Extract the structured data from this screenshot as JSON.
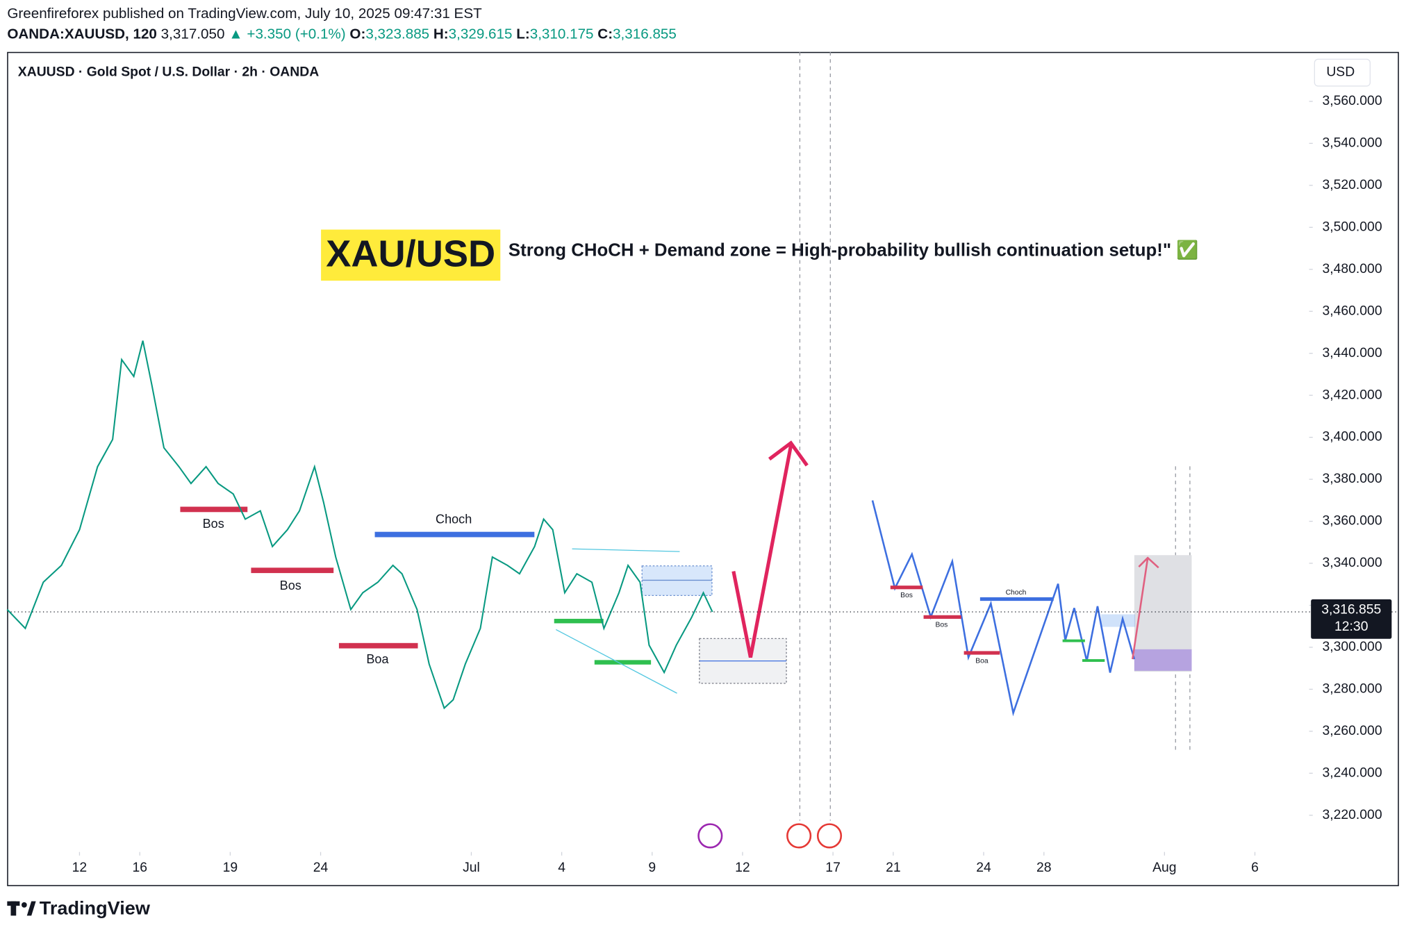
{
  "header": {
    "publisher_line": "Greenfireforex published on TradingView.com, July 10, 2025 09:47:31 EST",
    "symbol": "OANDA:XAUUSD, 120",
    "last": "3,317.050",
    "change": "▲ +3.350 (+0.1%)",
    "ohlc": [
      {
        "label": "O:",
        "value": "3,323.885"
      },
      {
        "label": "H:",
        "value": "3,329.615"
      },
      {
        "label": "L:",
        "value": "3,310.175"
      },
      {
        "label": "C:",
        "value": "3,316.855"
      }
    ]
  },
  "chart_data": {
    "type": "line",
    "title": "XAUUSD · Gold Spot / U.S. Dollar · 2h · OANDA",
    "currency": "USD",
    "color": "#089981",
    "banner_title": "XAU/USD",
    "banner_text": "Strong CHoCH + Demand zone = High-probability bullish continuation setup!\" ✅",
    "annotations": [
      "Bos",
      "Bos",
      "Boa",
      "Choch",
      "Bos",
      "Bos",
      "Boa",
      "Choch"
    ],
    "x": [
      -2.4,
      -1.8,
      -1.2,
      -0.6,
      0.0,
      0.6,
      1.1,
      1.4,
      1.8,
      2.1,
      2.4,
      2.8,
      3.3,
      3.7,
      4.2,
      4.6,
      5.1,
      5.5,
      6.0,
      6.4,
      6.9,
      7.3,
      7.8,
      8.1,
      8.5,
      9.0,
      9.4,
      9.9,
      10.4,
      10.7,
      11.2,
      11.6,
      12.1,
      12.4,
      12.8,
      13.3,
      13.7,
      14.2,
      14.6,
      15.1,
      15.4,
      15.7,
      16.1,
      16.5,
      17.0,
      17.4,
      17.9,
      18.2,
      18.6,
      18.9,
      19.4,
      19.8,
      20.3,
      20.7,
      21.0
    ],
    "values": [
      3318,
      3309,
      3331,
      3339,
      3356,
      3386,
      3399,
      3437,
      3429,
      3446,
      3425,
      3395,
      3386,
      3378,
      3386,
      3378,
      3373,
      3361,
      3365,
      3348,
      3356,
      3365,
      3386,
      3369,
      3343,
      3318,
      3326,
      3331,
      3339,
      3335,
      3318,
      3292,
      3271,
      3275,
      3292,
      3309,
      3343,
      3339,
      3335,
      3348,
      3361,
      3356,
      3326,
      3335,
      3331,
      3309,
      3326,
      3339,
      3331,
      3301,
      3288,
      3301,
      3314,
      3326,
      3316.855
    ],
    "last_price": {
      "value": 3316.855,
      "label": "3,316.855"
    },
    "countdown": "12:30",
    "xlim": [
      -2.4,
      40.8
    ],
    "xticks": [
      {
        "value": 0,
        "label": "12"
      },
      {
        "value": 2,
        "label": "16"
      },
      {
        "value": 5,
        "label": "19"
      },
      {
        "value": 8,
        "label": "24"
      },
      {
        "value": 13,
        "label": "Jul"
      },
      {
        "value": 16,
        "label": "4"
      },
      {
        "value": 19,
        "label": "9"
      },
      {
        "value": 22,
        "label": "12"
      },
      {
        "value": 25,
        "label": "17"
      },
      {
        "value": 27,
        "label": "21"
      },
      {
        "value": 30,
        "label": "24"
      },
      {
        "value": 32,
        "label": "28"
      },
      {
        "value": 36,
        "label": "Aug"
      },
      {
        "value": 39,
        "label": "6"
      }
    ],
    "ylim": [
      3202.5,
      3583.5
    ],
    "yticks": [
      {
        "value": 3220,
        "label": "3,220.000"
      },
      {
        "value": 3240,
        "label": "3,240.000"
      },
      {
        "value": 3260,
        "label": "3,260.000"
      },
      {
        "value": 3280,
        "label": "3,280.000"
      },
      {
        "value": 3300,
        "label": "3,300.000"
      },
      {
        "value": 3320,
        "label": "3,320.000"
      },
      {
        "value": 3340,
        "label": "3,340.000"
      },
      {
        "value": 3360,
        "label": "3,360.000"
      },
      {
        "value": 3380,
        "label": "3,380.000"
      },
      {
        "value": 3400,
        "label": "3,400.000"
      },
      {
        "value": 3420,
        "label": "3,420.000"
      },
      {
        "value": 3440,
        "label": "3,440.000"
      },
      {
        "value": 3460,
        "label": "3,460.000"
      },
      {
        "value": 3480,
        "label": "3,480.000"
      },
      {
        "value": 3500,
        "label": "3,500.000"
      },
      {
        "value": 3520,
        "label": "3,520.000"
      },
      {
        "value": 3540,
        "label": "3,540.000"
      },
      {
        "value": 3560,
        "label": "3,560.000"
      }
    ],
    "grid": false
  },
  "footer": {
    "brand": "TradingView"
  }
}
